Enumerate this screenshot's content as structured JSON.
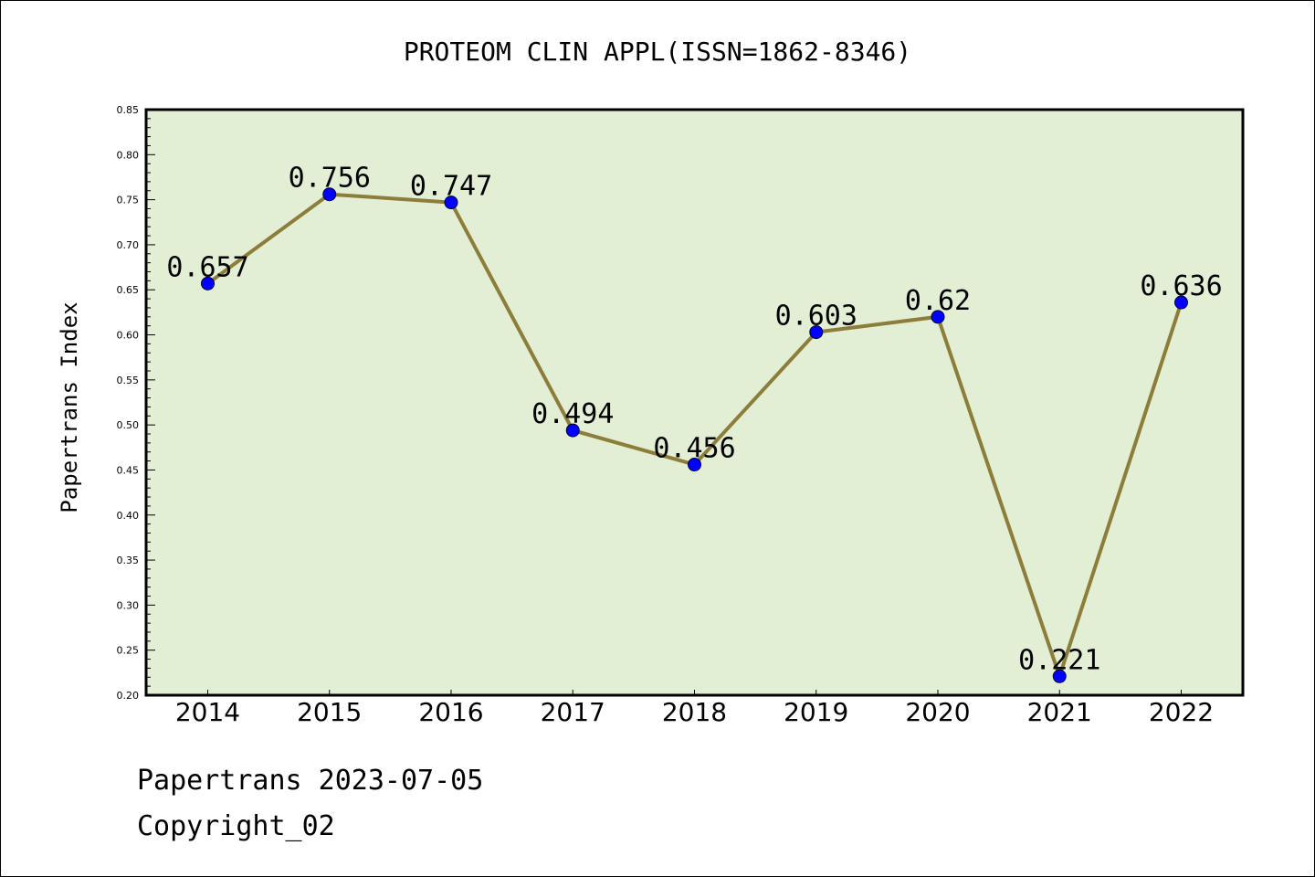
{
  "chart_data": {
    "type": "line",
    "title": "PROTEOM CLIN APPL(ISSN=1862-8346)",
    "xlabel": "",
    "ylabel": "Papertrans Index",
    "categories": [
      "2014",
      "2015",
      "2016",
      "2017",
      "2018",
      "2019",
      "2020",
      "2021",
      "2022"
    ],
    "series": [
      {
        "values": [
          0.657,
          0.756,
          0.747,
          0.494,
          0.456,
          0.603,
          0.62,
          0.221,
          0.636
        ],
        "labels": [
          "0.657",
          "0.756",
          "0.747",
          "0.494",
          "0.456",
          "0.603",
          "0.62",
          "0.221",
          "0.636"
        ]
      }
    ],
    "ylim": [
      0.2,
      0.85
    ],
    "yticks": [
      "0.20",
      "0.25",
      "0.30",
      "0.35",
      "0.40",
      "0.45",
      "0.50",
      "0.55",
      "0.60",
      "0.65",
      "0.70",
      "0.75",
      "0.80",
      "0.85"
    ],
    "grid": false,
    "colors": {
      "plot_background": "#e2efd5",
      "line": "#8c7d3a",
      "marker": "#0000ff"
    }
  },
  "footer": {
    "line1": "Papertrans 2023-07-05",
    "line2": "Copyright_02"
  }
}
